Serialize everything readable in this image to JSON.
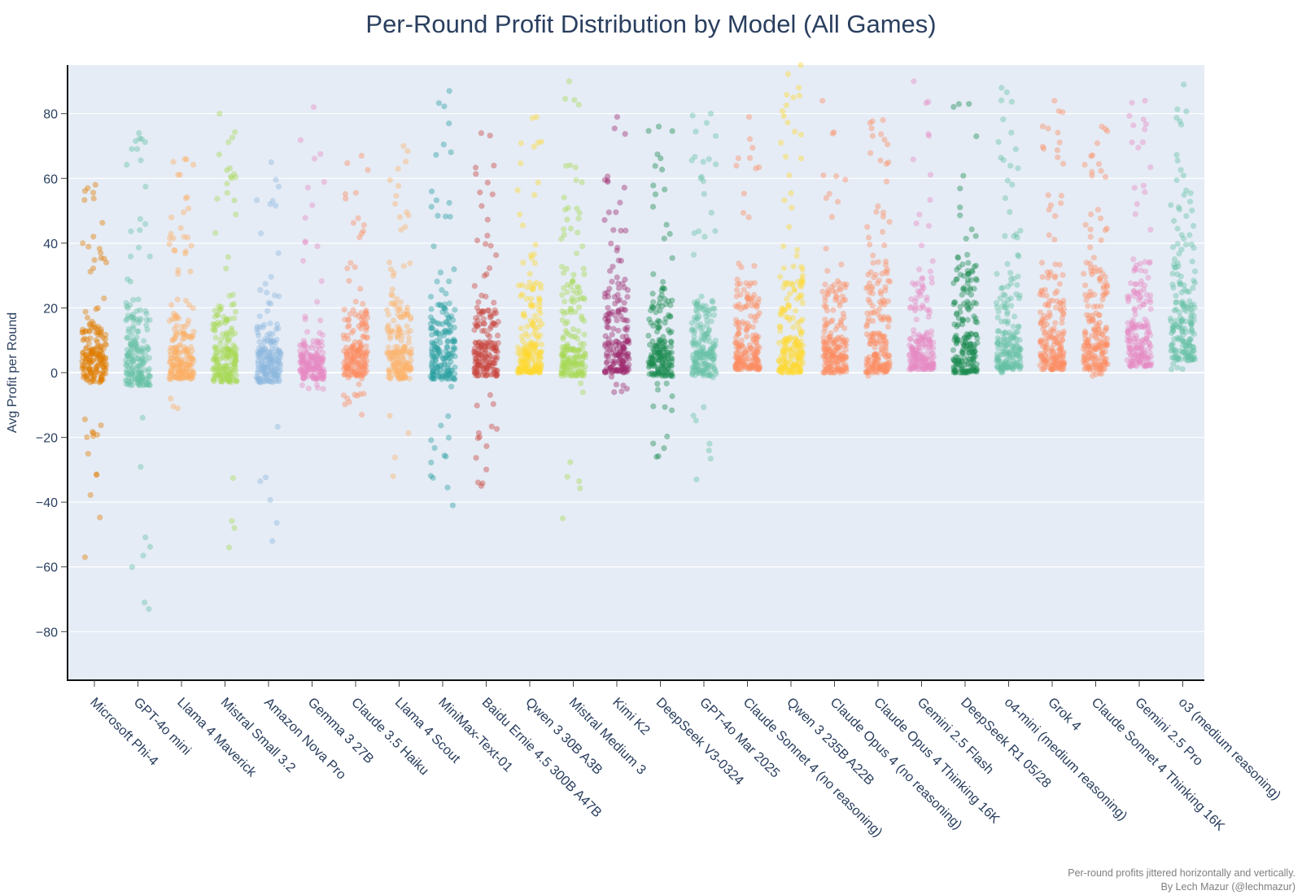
{
  "chart_data": {
    "type": "scatter",
    "title": "Per-Round Profit Distribution by Model (All Games)",
    "xlabel": "",
    "ylabel": "Avg Profit per Round",
    "ylim": [
      -95,
      95
    ],
    "yticks": [
      -80,
      -60,
      -40,
      -20,
      0,
      20,
      40,
      60,
      80
    ],
    "grid": true,
    "legend": "none",
    "annotation": [
      "Per-round profits jittered horizontally and vertically.",
      "By Lech Mazur (@lechmazur)"
    ],
    "series": [
      {
        "name": "Microsoft Phi-4",
        "color": "#e07b00",
        "min": -57,
        "max": 58,
        "median": 4,
        "q1": -1,
        "q3": 15
      },
      {
        "name": "GPT-4o mini",
        "color": "#66c2a5",
        "min": -73,
        "max": 74,
        "median": 5,
        "q1": -2,
        "q3": 22
      },
      {
        "name": "Llama 4 Maverick",
        "color": "#fdae61",
        "min": -11,
        "max": 66,
        "median": 4,
        "q1": 0,
        "q3": 18
      },
      {
        "name": "Mistral Small 3.2",
        "color": "#a6d854",
        "min": -54,
        "max": 80,
        "median": 4,
        "q1": -1,
        "q3": 22
      },
      {
        "name": "Amazon Nova Pro",
        "color": "#8db7de",
        "min": -52,
        "max": 65,
        "median": 3,
        "q1": -1,
        "q3": 15
      },
      {
        "name": "Gemma 3 27B",
        "color": "#e78ac3",
        "min": -5,
        "max": 82,
        "median": 2,
        "q1": 0,
        "q3": 10
      },
      {
        "name": "Claude 3.5 Haiku",
        "color": "#fc8d62",
        "min": -13,
        "max": 67,
        "median": 5,
        "q1": 1,
        "q3": 20
      },
      {
        "name": "Llama 4 Scout",
        "color": "#fdb36b",
        "min": -32,
        "max": 70,
        "median": 4,
        "q1": 0,
        "q3": 22
      },
      {
        "name": "MiniMax-Text-01",
        "color": "#2ca0a0",
        "min": -41,
        "max": 87,
        "median": 5,
        "q1": 0,
        "q3": 22
      },
      {
        "name": "Baidu Ernie 4.5 300B A47B",
        "color": "#c8423c",
        "min": -35,
        "max": 74,
        "median": 6,
        "q1": 1,
        "q3": 22
      },
      {
        "name": "Qwen 3 30B A3B",
        "color": "#ffd92f",
        "min": 0,
        "max": 79,
        "median": 5,
        "q1": 1,
        "q3": 28
      },
      {
        "name": "Mistral Medium 3",
        "color": "#a6d854",
        "min": -45,
        "max": 90,
        "median": 5,
        "q1": 1,
        "q3": 28
      },
      {
        "name": "Kimi K2",
        "color": "#9e2a6e",
        "min": -6,
        "max": 79,
        "median": 6,
        "q1": 2,
        "q3": 28
      },
      {
        "name": "DeepSeek V3-0324",
        "color": "#1b8a4e",
        "min": -26,
        "max": 76,
        "median": 6,
        "q1": 1,
        "q3": 24
      },
      {
        "name": "GPT-4o Mar 2025",
        "color": "#66c2a5",
        "min": -33,
        "max": 80,
        "median": 7,
        "q1": 1,
        "q3": 24
      },
      {
        "name": "Claude Sonnet 4 (no reasoning)",
        "color": "#fc8d62",
        "min": 1,
        "max": 79,
        "median": 7,
        "q1": 3,
        "q3": 28
      },
      {
        "name": "Qwen 3 235B A22B",
        "color": "#ffd92f",
        "min": 0,
        "max": 95,
        "median": 7,
        "q1": 2,
        "q3": 30
      },
      {
        "name": "Claude Opus 4 (no reasoning)",
        "color": "#fc8d62",
        "min": 0,
        "max": 84,
        "median": 7,
        "q1": 2,
        "q3": 28
      },
      {
        "name": "Claude Opus 4 Thinking 16K",
        "color": "#fc8d62",
        "min": -1,
        "max": 78,
        "median": 8,
        "q1": 2,
        "q3": 32
      },
      {
        "name": "Gemini 2.5 Flash",
        "color": "#e78ac3",
        "min": 1,
        "max": 90,
        "median": 8,
        "q1": 3,
        "q3": 30
      },
      {
        "name": "DeepSeek R1 05/28",
        "color": "#1b8a4e",
        "min": 0,
        "max": 83,
        "median": 8,
        "q1": 2,
        "q3": 34
      },
      {
        "name": "o4-mini (medium reasoning)",
        "color": "#66c2a5",
        "min": 0,
        "max": 88,
        "median": 9,
        "q1": 3,
        "q3": 34
      },
      {
        "name": "Grok 4",
        "color": "#fc8d62",
        "min": 1,
        "max": 84,
        "median": 9,
        "q1": 3,
        "q3": 32
      },
      {
        "name": "Claude Sonnet 4 Thinking 16K",
        "color": "#fc8d62",
        "min": -1,
        "max": 76,
        "median": 10,
        "q1": 3,
        "q3": 34
      },
      {
        "name": "Gemini 2.5 Pro",
        "color": "#e78ac3",
        "min": 2,
        "max": 84,
        "median": 12,
        "q1": 4,
        "q3": 34
      },
      {
        "name": "o3 (medium reasoning)",
        "color": "#66c2a5",
        "min": 1,
        "max": 89,
        "median": 20,
        "q1": 6,
        "q3": 42
      }
    ]
  }
}
